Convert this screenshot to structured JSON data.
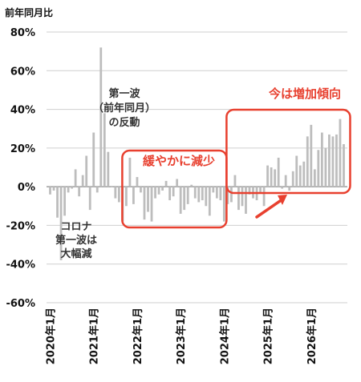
{
  "chart_data": {
    "type": "bar",
    "ylabel": "前年同月比",
    "ylim": [
      -60,
      80
    ],
    "yticks": [
      "80%",
      "60%",
      "40%",
      "20%",
      "0%",
      "-20%",
      "-40%",
      "-60%"
    ],
    "ytick_values": [
      80,
      60,
      40,
      20,
      0,
      -20,
      -40,
      -60
    ],
    "xtick_labels": [
      "2020年1月",
      "2021年1月",
      "2022年1月",
      "2023年1月",
      "2024年1月",
      "2025年1月",
      "2026年1月"
    ],
    "x_start": "2020-01",
    "x_end": "2026-01",
    "bar_color": "#bdbdbd",
    "grid": true,
    "values": [
      -4,
      -2,
      -16,
      -38,
      -15,
      -3,
      -1,
      9,
      -5,
      6,
      16,
      -12,
      28,
      -3,
      72,
      38,
      18,
      0,
      -6,
      -8,
      -18,
      -10,
      15,
      -9,
      5,
      -3,
      -17,
      -13,
      -18,
      -6,
      -4,
      -2,
      3,
      -7,
      -5,
      4,
      -14,
      -12,
      -9,
      1,
      -6,
      -8,
      -7,
      -10,
      -15,
      -3,
      -6,
      -7,
      -18,
      -9,
      -8,
      6,
      -12,
      -10,
      -14,
      -4,
      -6,
      -7,
      -3,
      -10,
      11,
      10,
      9,
      15,
      -1,
      6,
      -2,
      8,
      16,
      11,
      13,
      26,
      32,
      9,
      19,
      28,
      20,
      27,
      26,
      27,
      35,
      22
    ],
    "annotations": [
      {
        "name": "annotation-first-wave-drop",
        "lines": [
          "コロナ",
          "第一波は",
          "大幅減"
        ]
      },
      {
        "name": "annotation-first-wave-rebound",
        "lines": [
          "第一波",
          "（前年同月）",
          "の反動"
        ]
      },
      {
        "name": "annotation-slow-decrease",
        "lines": [
          "緩やかに減少"
        ]
      },
      {
        "name": "annotation-increasing-trend",
        "lines": [
          "今は増加傾向"
        ]
      }
    ],
    "highlight_color": "#e8402f"
  }
}
